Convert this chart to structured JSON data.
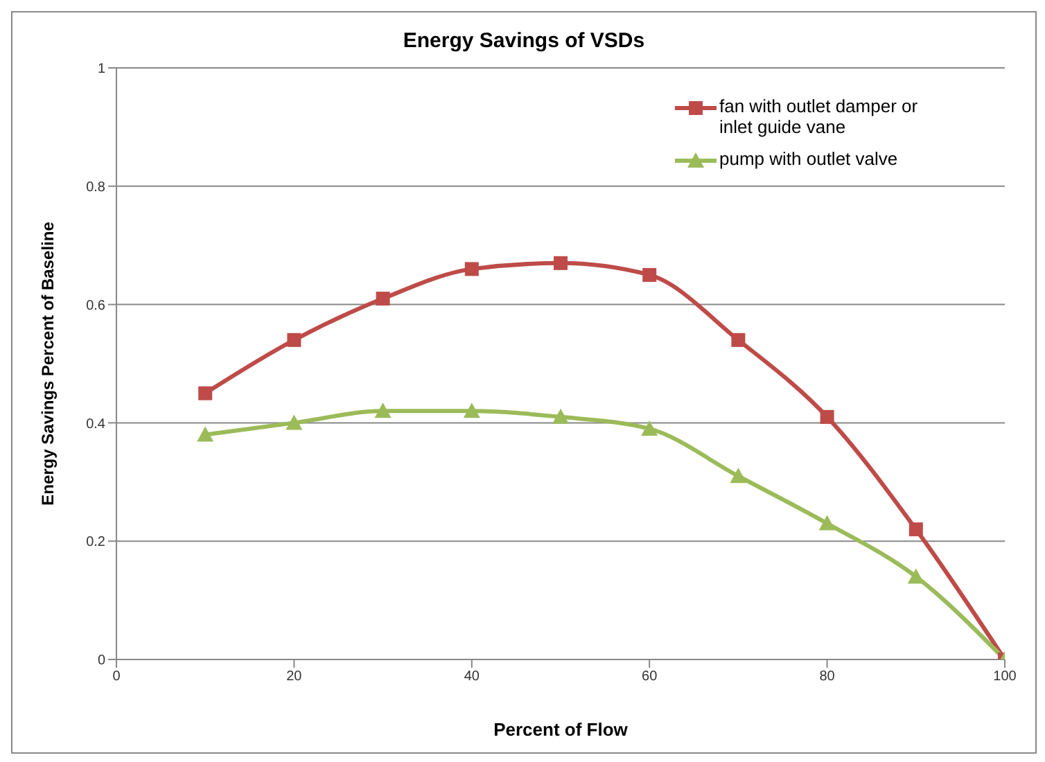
{
  "chart_data": {
    "type": "line",
    "title": "Energy Savings of VSDs",
    "xlabel": "Percent of Flow",
    "ylabel": "Energy Savings Percent of Baseline",
    "x": [
      10,
      20,
      30,
      40,
      50,
      60,
      70,
      80,
      90,
      100
    ],
    "series": [
      {
        "name": "fan with outlet damper or inlet guide vane",
        "color": "#be4b48",
        "marker": "square",
        "values": [
          0.45,
          0.54,
          0.61,
          0.66,
          0.67,
          0.65,
          0.54,
          0.41,
          0.22,
          0
        ]
      },
      {
        "name": "pump with outlet valve",
        "color": "#9bbb59",
        "marker": "triangle",
        "values": [
          0.38,
          0.4,
          0.42,
          0.42,
          0.41,
          0.39,
          0.31,
          0.23,
          0.14,
          0
        ]
      }
    ],
    "xlim": [
      0,
      100
    ],
    "xticks": [
      0,
      20,
      40,
      60,
      80,
      100
    ],
    "ylim": [
      0,
      1
    ],
    "yticks": [
      0,
      0.2,
      0.4,
      0.6,
      0.8,
      1
    ],
    "grid": "y",
    "legend": "top right"
  }
}
